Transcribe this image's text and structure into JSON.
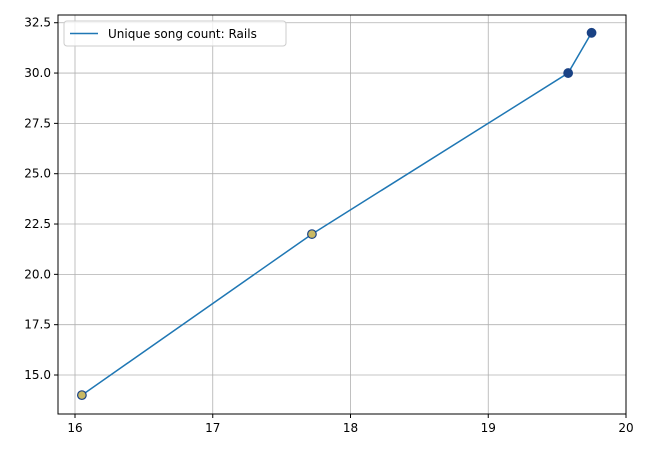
{
  "chart_data": {
    "type": "line",
    "title": "",
    "xlabel": "",
    "ylabel": "",
    "xlim": [
      15.87,
      20.0
    ],
    "ylim": [
      13.1,
      32.9
    ],
    "grid": true,
    "legend_position": "top-left",
    "x_ticks": [
      16,
      17,
      18,
      19,
      20
    ],
    "x_tick_labels": [
      "16",
      "17",
      "18",
      "19",
      "20"
    ],
    "y_ticks": [
      15.0,
      17.5,
      20.0,
      22.5,
      25.0,
      27.5,
      30.0,
      32.5
    ],
    "y_tick_labels": [
      "15.0",
      "17.5",
      "20.0",
      "22.5",
      "25.0",
      "27.5",
      "30.0",
      "32.5"
    ],
    "series": [
      {
        "name": "Unique song count: Rails",
        "color": "#1f77b4",
        "x": [
          16.05,
          17.72,
          19.58,
          19.75
        ],
        "y": [
          14,
          22,
          30,
          32
        ],
        "marker_fill_colors": [
          "#c9b964",
          "#c9b964",
          "#1a4285",
          "#1a4285"
        ],
        "marker_edge_color": "#1a4285"
      }
    ]
  }
}
